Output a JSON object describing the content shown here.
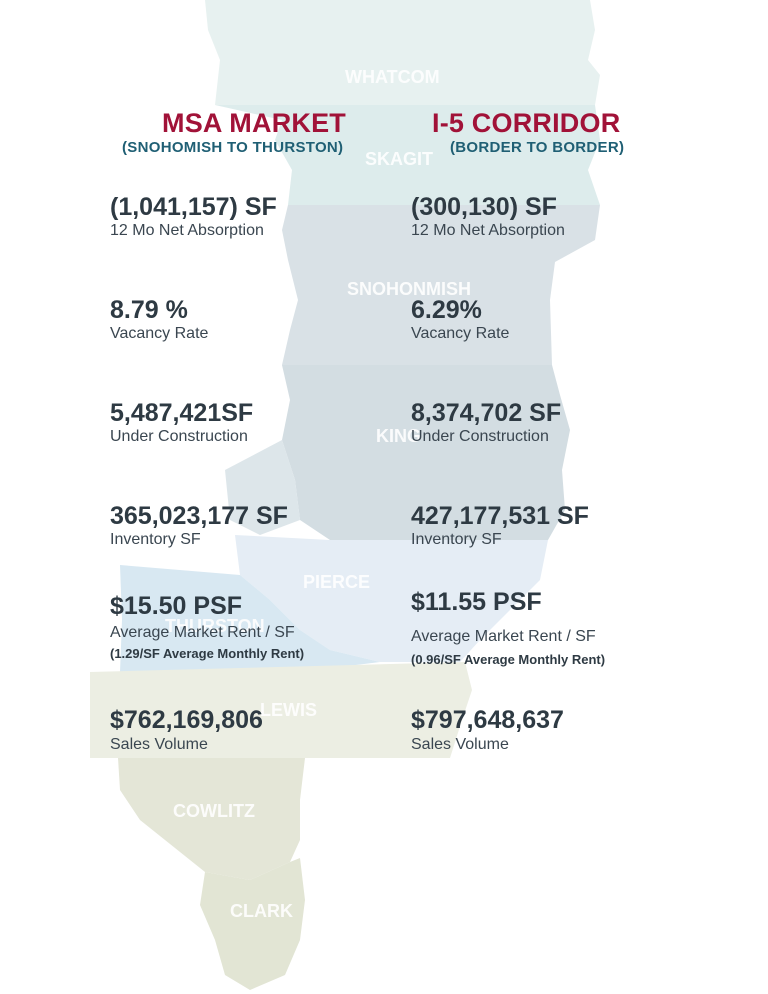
{
  "map": {
    "counties": [
      {
        "name": "WHATCOM",
        "color": "#e7f1f0"
      },
      {
        "name": "SKAGIT",
        "color": "#ddecec"
      },
      {
        "name": "SNOHONMISH",
        "color": "#d9e1e6"
      },
      {
        "name": "KING",
        "color": "#d3dde2"
      },
      {
        "name": "PIERCE",
        "color": "#e5edf5"
      },
      {
        "name": "THURSTON",
        "color": "#d8e8f2"
      },
      {
        "name": "LEWIS",
        "color": "#eceee3"
      },
      {
        "name": "COWLITZ",
        "color": "#e4e6d7"
      },
      {
        "name": "CLARK",
        "color": "#e2e5d4"
      }
    ]
  },
  "msa": {
    "title": "MSA MARKET",
    "subtitle": "(SNOHOMISH TO THURSTON)",
    "stats": [
      {
        "value": "(1,041,157) SF",
        "label": "12 Mo Net Absorption"
      },
      {
        "value": "8.79 %",
        "label": "Vacancy Rate"
      },
      {
        "value": "5,487,421SF",
        "label": "Under Construction"
      },
      {
        "value": "365,023,177 SF",
        "label": "Inventory SF"
      },
      {
        "value": "$15.50 PSF",
        "label": "Average Market Rent / SF",
        "note": "(1.29/SF Average Monthly Rent)"
      },
      {
        "value": "$762,169,806",
        "label": "Sales Volume"
      }
    ]
  },
  "i5": {
    "title": "I-5 CORRIDOR",
    "subtitle": "(BORDER TO BORDER)",
    "stats": [
      {
        "value": "(300,130) SF",
        "label": "12 Mo Net Absorption"
      },
      {
        "value": "6.29%",
        "label": "Vacancy Rate"
      },
      {
        "value": "8,374,702 SF",
        "label": "Under Construction"
      },
      {
        "value": "427,177,531 SF",
        "label": "Inventory SF"
      },
      {
        "value": "$11.55 PSF",
        "label": "Average Market Rent / SF",
        "note": "(0.96/SF Average Monthly Rent)"
      },
      {
        "value": "$797,648,637",
        "label": "Sales Volume"
      }
    ]
  },
  "colors": {
    "title": "#a11238",
    "subtitle": "#1f5f74",
    "value": "#2e3a43"
  }
}
